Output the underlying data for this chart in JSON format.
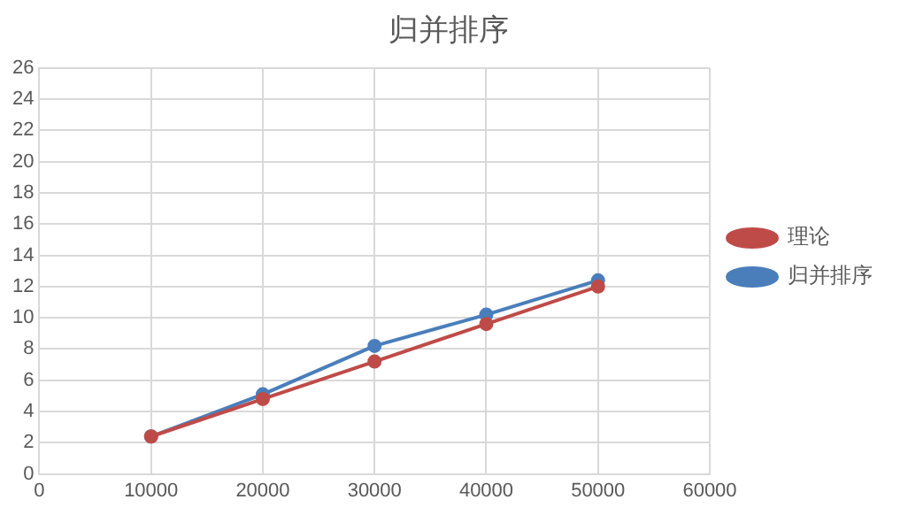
{
  "chart_data": {
    "type": "line",
    "title": "归并排序",
    "x": [
      10000,
      20000,
      30000,
      40000,
      50000
    ],
    "series": [
      {
        "name": "归并排序",
        "color": "#4a7ebb",
        "values": [
          2.4,
          5.1,
          8.2,
          10.2,
          12.4
        ]
      },
      {
        "name": "理论",
        "color": "#be4b48",
        "values": [
          2.4,
          4.8,
          7.2,
          9.6,
          12.0
        ]
      }
    ],
    "xlim": [
      0,
      60000
    ],
    "xticks": [
      0,
      10000,
      20000,
      30000,
      40000,
      50000,
      60000
    ],
    "ylim": [
      0,
      26
    ],
    "yticks": [
      0,
      2,
      4,
      6,
      8,
      10,
      12,
      14,
      16,
      18,
      20,
      22,
      24,
      26
    ],
    "grid": true,
    "legend": "right",
    "marker": "circle",
    "line_style": "solid"
  }
}
